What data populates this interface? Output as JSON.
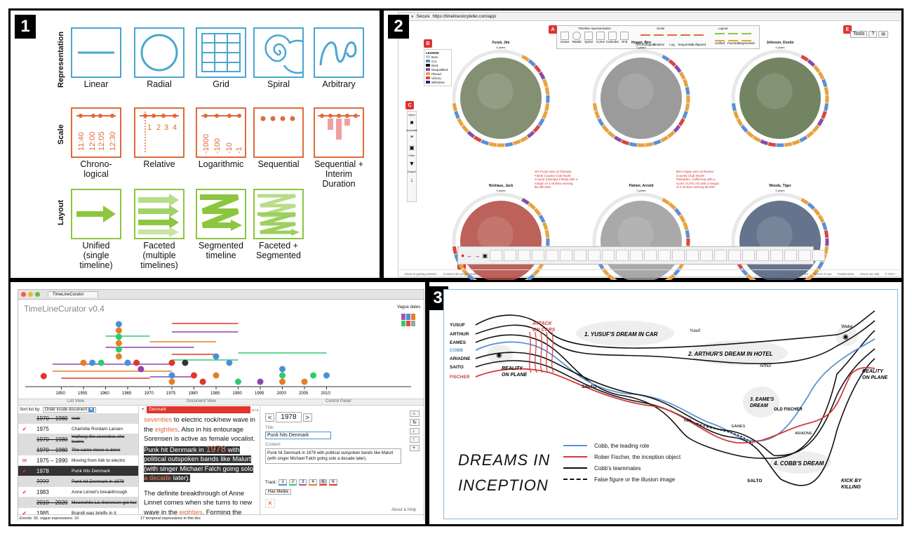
{
  "panel1": {
    "badge": "1",
    "row_labels": [
      "Representation",
      "Scale",
      "Layout"
    ],
    "representation": [
      "Linear",
      "Radial",
      "Grid",
      "Spiral",
      "Arbitrary"
    ],
    "scale": [
      {
        "label": "Chrono-\nlogical",
        "ticks": [
          "11:40",
          "12:00",
          "12:05",
          "12:30"
        ]
      },
      {
        "label": "Relative",
        "ticks": [
          "1",
          "2",
          "3",
          "4"
        ]
      },
      {
        "label": "Logarithmic",
        "ticks": [
          "-1000",
          "-100",
          "-10",
          "-1"
        ]
      },
      {
        "label": "Sequential"
      },
      {
        "label": "Sequential +\nInterim\nDuration"
      }
    ],
    "layout": [
      "Unified\n(single\ntimeline)",
      "Faceted\n(multiple\ntimelines)",
      "Segmented\ntimeline",
      "Faceted +\nSegmented"
    ]
  },
  "panel2": {
    "badge": "2",
    "url": "https://timelinestoryteller.com/app/",
    "secure": "Secure",
    "toolbar_group_titles": [
      "Timeline representation",
      "Scale",
      "Layout"
    ],
    "toolbar_rep_items": [
      "Linear",
      "Radial",
      "Spiral",
      "Curve",
      "Calendar",
      "Grid"
    ],
    "toolbar_scale_items": [
      "Chronological",
      "Relative",
      "Log",
      "Sequential",
      "Collapsed"
    ],
    "toolbar_layout_items": [
      "Unified",
      "Faceted",
      "Segmented"
    ],
    "letters": [
      "A",
      "B",
      "C",
      "D",
      "E"
    ],
    "legend_title": "LEGEND",
    "legend": [
      {
        "label": "Born",
        "color": "#c9c9c9"
      },
      {
        "label": "Cut",
        "color": "#5b8fd6"
      },
      {
        "label": "Died",
        "color": "#111111"
      },
      {
        "label": "Disqualified",
        "color": "#8b4aa8"
      },
      {
        "label": "Placed",
        "color": "#e9a23b"
      },
      {
        "label": "Victory",
        "color": "#d9473f"
      },
      {
        "label": "Withdrew",
        "color": "#1c2b6b"
      }
    ],
    "side_menu": [
      "Open",
      "Annotate",
      "Filter",
      "Export"
    ],
    "golfers": [
      "Furyk, Jim",
      "Hogan, Ben",
      "Johnson, Dustin",
      "Nicklaus, Jack",
      "Palmer, Arnold",
      "Woods, Tiger"
    ],
    "year_label": "0 years",
    "annotation1": "Jim Furyk wins at Olympia Fields Country Club North Course (Olympia Fields) with a margin of 3 strokes earning $1,080,000.",
    "annotation2": "Ben Hogan wins at Riviera Country Club (North Palisades, California) with a score of 276 (-8) with a margin of 2 strokes earning $2,000.",
    "top_right_buttons": [
      "Tools",
      "?",
      "✉"
    ],
    "footer_left": [
      "About & getting started",
      "Contact the project team"
    ],
    "footer_right": [
      "Privacy & cookies",
      "Terms of use",
      "Trademarks",
      "About our ads",
      "© 2017"
    ]
  },
  "panel_tlc": {
    "tab": "TimeLineCurator",
    "title": "TimeLineCurator v0.4",
    "vague": "Vague dates",
    "years": [
      "1950",
      "1955",
      "1960",
      "1965",
      "1970",
      "1975",
      "1980",
      "1985",
      "1990",
      "1995",
      "2000",
      "2005",
      "2010"
    ],
    "headers": [
      "List View",
      "Document View",
      "Control Panel"
    ],
    "sort_label": "Sort list by:",
    "sort_value": "Order inside document",
    "doc_tab": "Denmark",
    "doc_count": "2 / 4",
    "rows": [
      {
        "date": "1970 – 1980",
        "text": "rock",
        "strike": true,
        "icon": "none"
      },
      {
        "date": "1975",
        "text": "Charlotte Rordam Larsen",
        "strike": false,
        "icon": "check"
      },
      {
        "date": "1970 – 1980",
        "text": "Halfway the seventies she teams",
        "strike": true,
        "icon": "none"
      },
      {
        "date": "1970 – 1980",
        "text": "The same move is done",
        "strike": true,
        "icon": "none"
      },
      {
        "date": "1975 – 1990",
        "text": "Moving from folk to electro",
        "strike": false,
        "icon": "mail"
      },
      {
        "date": "1978",
        "text": "Punk hits Denmark",
        "strike": false,
        "icon": "check",
        "selected": true
      },
      {
        "date": "????",
        "text": "Punk hit Denmark in 1978",
        "strike": true,
        "icon": "none"
      },
      {
        "date": "1983",
        "text": "Anne Linnet's breakthrough",
        "strike": false,
        "icon": "check"
      },
      {
        "date": "2010 – 2020",
        "text": "Meanwhile Lis Sorensen got her",
        "strike": true,
        "icon": "none"
      },
      {
        "date": "1985",
        "text": "Brandt was briefly in it",
        "strike": false,
        "icon": "check"
      }
    ],
    "doc_text_1": "seventies",
    "doc_text_2": " to electric rock/new wave in the ",
    "doc_text_3": "eighties",
    "doc_text_4": ". Also in his entourage Sorensen is active as female vocalist.",
    "doc_hl_1": "Punk hit Denmark in ",
    "doc_hl_year": "1978",
    "doc_hl_2": " with political outspoken bands like Malurt (with singer Michael Falch going solo ",
    "doc_hl_3": "a decade",
    "doc_hl_4": " later).",
    "doc_para2_a": "The definite breakthrough of Anne Linnet comes when she turns to new wave in the ",
    "doc_para2_b": "eighties",
    "doc_para2_c": ". Forming the",
    "cp_year": "1978",
    "cp_title_label": "Title:",
    "cp_title": "Punk hits Denmark",
    "cp_content_label": "Content:",
    "cp_content": "Punk hit Denmark in 1978 with political outspoken bands like Malurt (with singer Michael Falch going solo a decade later).",
    "track_label": "Track:",
    "tracks": [
      "1",
      "2",
      "3",
      "4",
      "5",
      "6"
    ],
    "has_media": "Has Media",
    "status_events": "Events: 92, vague expressions: 10",
    "status_temporal": "17 temporal expressions in this doc",
    "about": "About & Help"
  },
  "panel3": {
    "badge": "3",
    "title_line1": "DREAMS IN",
    "title_line2": "INCEPTION",
    "chars": [
      "YUSUF",
      "ARTHUR",
      "EAMES",
      "COBB",
      "ARIADNE",
      "SAITO",
      "FISCHER"
    ],
    "labels": {
      "attack": "ATTACK\nON CARS",
      "reality_left": "REALITY\nON PLANE",
      "dream1": "1. YUSUF'S DREAM IN CAR",
      "dream2": "2. ARTHUR'S DREAM IN HOTEL",
      "dream3": "3. EAME'S\nDREAM",
      "dream4": "4. COBB'S DREAM",
      "wake": "Wake",
      "reality_right": "REALITY\nON PLANE",
      "yusuf": "Yusuf",
      "arthur": "Arthur",
      "salto": "SALTO",
      "mal": "MAL",
      "eames": "EAMES",
      "old_fischer": "OLD FISCHER",
      "ariadne": "ARIADNE",
      "salto2": "SALTO",
      "kick": "KICK BY\nKILLING"
    },
    "legend": [
      {
        "label": "Cobb, the leading role",
        "color": "#5b93d1",
        "style": "solid"
      },
      {
        "label": "Rober Fischer, the inception object",
        "color": "#d13a3a",
        "style": "solid"
      },
      {
        "label": "Cobb's teammates",
        "color": "#111111",
        "style": "solid"
      },
      {
        "label": "False figure or the illusion image",
        "color": "#111111",
        "style": "dashed"
      }
    ]
  },
  "colors": {
    "blue": "#4aa6cf",
    "orange": "#e06a3a",
    "green": "#8cc63f",
    "pink": "#f0a0a0",
    "tlc_red": "#e2342b"
  }
}
